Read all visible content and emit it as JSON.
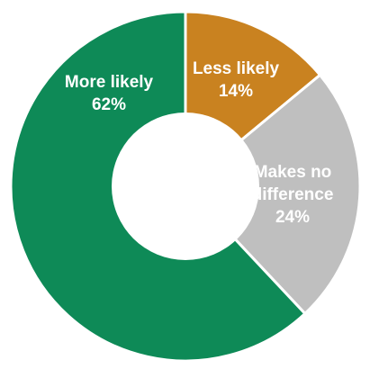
{
  "chart_data": {
    "type": "pie",
    "style": "donut",
    "title": "",
    "slices": [
      {
        "label_lines": [
          "Less likely"
        ],
        "value": 14,
        "value_label": "14%",
        "color": "#C98220"
      },
      {
        "label_lines": [
          "Makes no",
          "difference"
        ],
        "value": 24,
        "value_label": "24%",
        "color": "#BFBFBF"
      },
      {
        "label_lines": [
          "More likely"
        ],
        "value": 62,
        "value_label": "62%",
        "color": "#0E8A57"
      }
    ]
  }
}
